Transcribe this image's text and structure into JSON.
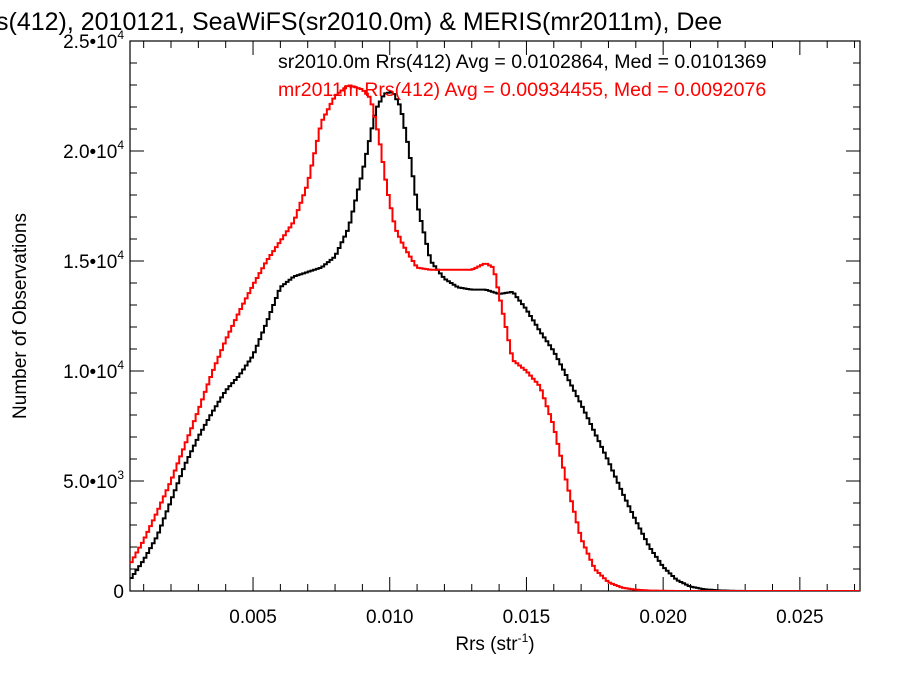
{
  "chart_data": {
    "type": "line",
    "title": "s(412), 2010121, SeaWiFS(sr2010.0m) & MERIS(mr2011m), Dee",
    "xlabel": "Rrs (str",
    "xlabel_sup": "-1",
    "xlabel_close": ")",
    "ylabel": "Number of Observations",
    "xlim": [
      0.0005,
      0.0272
    ],
    "ylim": [
      0,
      25000
    ],
    "x_ticks": [
      {
        "value": 0.005,
        "label": "0.005"
      },
      {
        "value": 0.01,
        "label": "0.010"
      },
      {
        "value": 0.015,
        "label": "0.015"
      },
      {
        "value": 0.02,
        "label": "0.020"
      },
      {
        "value": 0.025,
        "label": "0.025"
      }
    ],
    "y_ticks": [
      {
        "value": 0,
        "mant": "0",
        "exp": ""
      },
      {
        "value": 5000,
        "mant": "5.0•10",
        "exp": "3"
      },
      {
        "value": 10000,
        "mant": "1.0•10",
        "exp": "4"
      },
      {
        "value": 15000,
        "mant": "1.5•10",
        "exp": "4"
      },
      {
        "value": 20000,
        "mant": "2.0•10",
        "exp": "4"
      },
      {
        "value": 25000,
        "mant": "2.5•10",
        "exp": "4"
      }
    ],
    "grid": false,
    "legend_position": "top-right",
    "series": [
      {
        "name": "sr2010.0m Rrs(412) Avg = 0.0102864, Med = 0.0101369",
        "color": "#000000",
        "x": [
          0.0005,
          0.001,
          0.0015,
          0.002,
          0.0025,
          0.003,
          0.0035,
          0.004,
          0.0045,
          0.005,
          0.0055,
          0.006,
          0.0065,
          0.007,
          0.0075,
          0.008,
          0.0085,
          0.009,
          0.0095,
          0.0098,
          0.0101,
          0.0104,
          0.0107,
          0.011,
          0.0115,
          0.012,
          0.0125,
          0.013,
          0.0135,
          0.014,
          0.0145,
          0.015,
          0.0155,
          0.016,
          0.0165,
          0.017,
          0.0175,
          0.018,
          0.0185,
          0.019,
          0.0195,
          0.02,
          0.0205,
          0.021,
          0.0215,
          0.022,
          0.0225,
          0.023,
          0.025,
          0.0272
        ],
        "y": [
          500,
          1400,
          2500,
          4100,
          5700,
          7000,
          8100,
          9100,
          9800,
          10700,
          12200,
          13800,
          14300,
          14500,
          14700,
          15200,
          16500,
          19000,
          21900,
          22600,
          22700,
          22000,
          20100,
          17600,
          15000,
          14200,
          13800,
          13700,
          13700,
          13500,
          13600,
          12800,
          11800,
          10900,
          9700,
          8500,
          7200,
          5900,
          4500,
          3200,
          2000,
          1100,
          500,
          200,
          80,
          30,
          10,
          0,
          0,
          0
        ]
      },
      {
        "name": "mr2011m Rrs(412) Avg = 0.00934455, Med = 0.0092076",
        "color": "#ff0000",
        "x": [
          0.0005,
          0.001,
          0.0015,
          0.002,
          0.0025,
          0.003,
          0.0035,
          0.004,
          0.0045,
          0.005,
          0.0055,
          0.006,
          0.0065,
          0.007,
          0.0075,
          0.008,
          0.0085,
          0.009,
          0.0093,
          0.0096,
          0.0099,
          0.0102,
          0.0105,
          0.011,
          0.0115,
          0.012,
          0.0125,
          0.013,
          0.0135,
          0.0138,
          0.014,
          0.0145,
          0.015,
          0.0155,
          0.016,
          0.0165,
          0.017,
          0.0175,
          0.018,
          0.0185,
          0.019,
          0.0195,
          0.02,
          0.0205,
          0.021,
          0.0215,
          0.022,
          0.025,
          0.0272
        ],
        "y": [
          1200,
          2300,
          3600,
          5000,
          6600,
          8200,
          9900,
          11400,
          12700,
          13900,
          15000,
          15900,
          16800,
          18500,
          21300,
          22500,
          23000,
          22800,
          22400,
          20700,
          18300,
          16500,
          15700,
          14700,
          14600,
          14600,
          14600,
          14600,
          14900,
          14700,
          13500,
          10500,
          10000,
          9300,
          7500,
          4800,
          2400,
          1000,
          400,
          150,
          60,
          20,
          10,
          0,
          0,
          0,
          0,
          0,
          0
        ]
      }
    ]
  }
}
